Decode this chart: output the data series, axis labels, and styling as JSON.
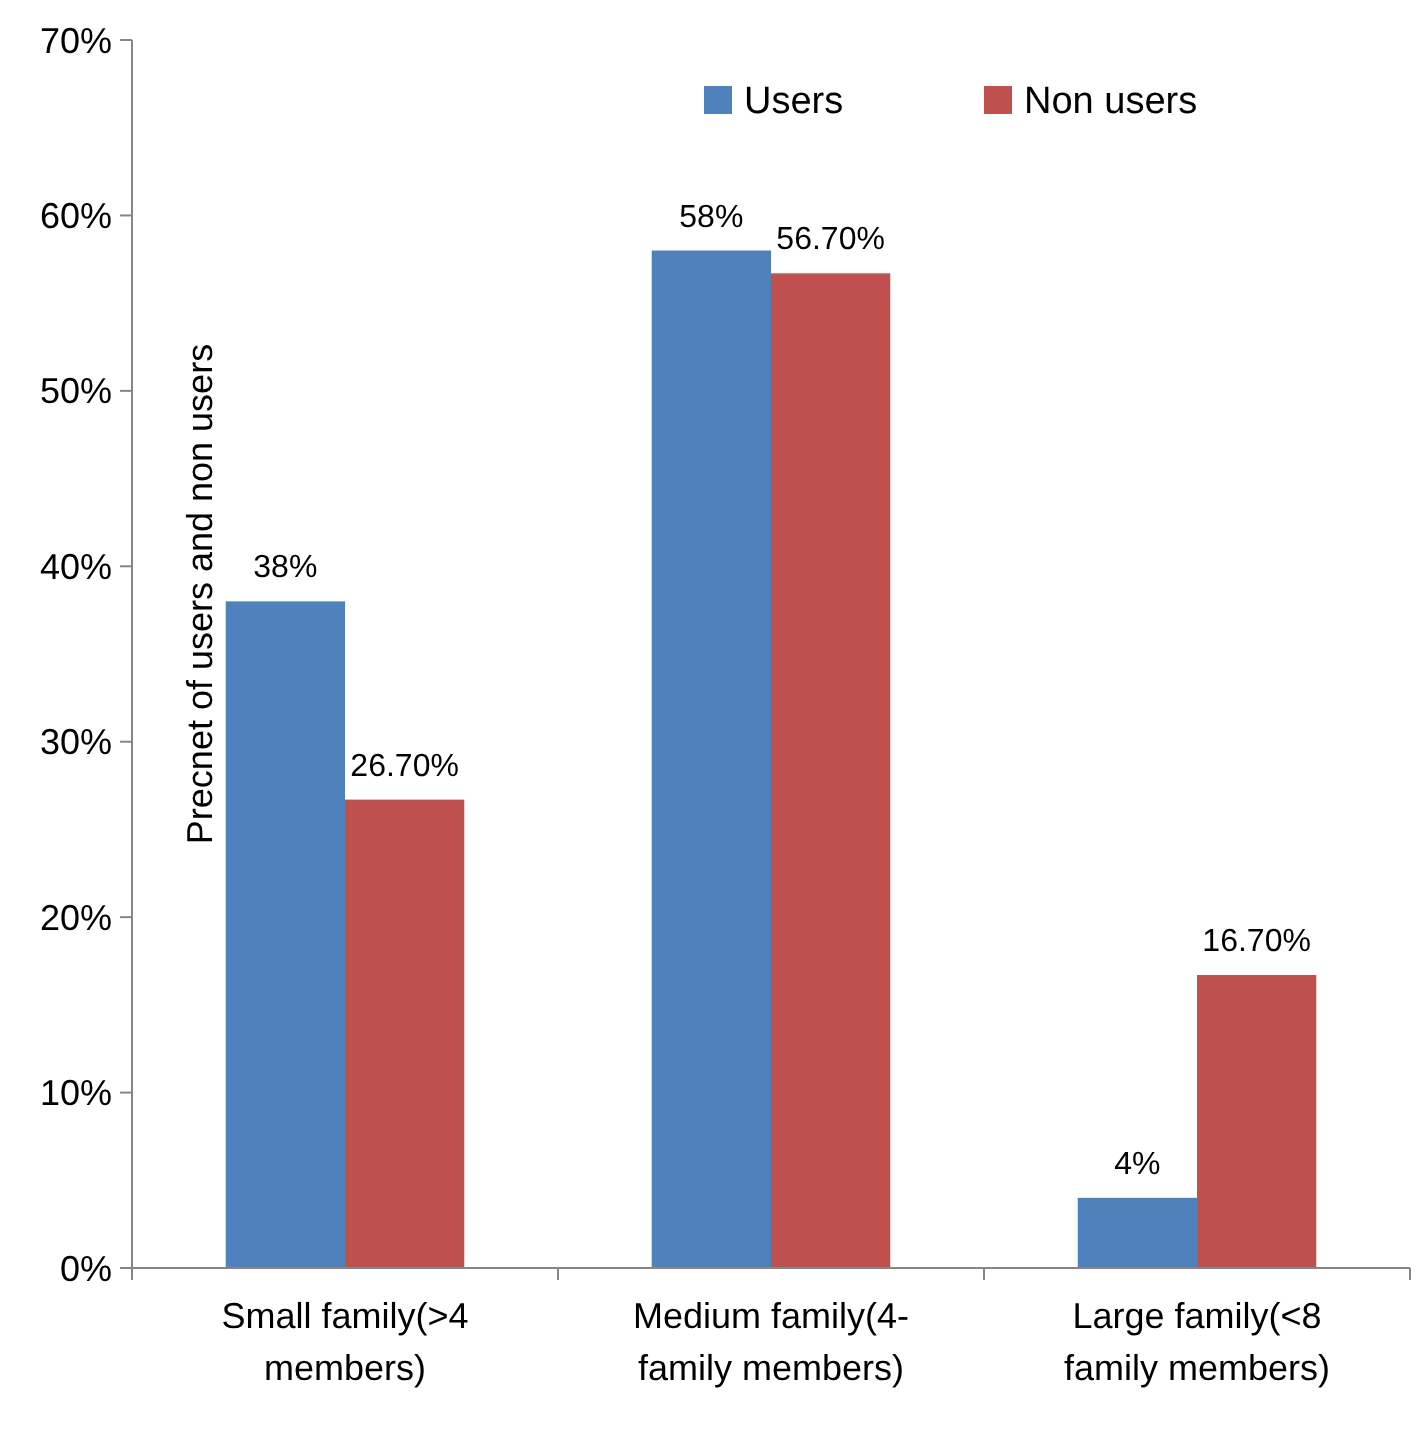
{
  "chart_data": {
    "type": "bar",
    "ylabel": "Precnet of users and non users",
    "categories": [
      "Small family(>4\nmembers)",
      "Medium family(4-\nfamily members)",
      "Large family(<8\nfamily members)"
    ],
    "series": [
      {
        "name": "Users",
        "color": "#4f81bd",
        "values": [
          38,
          58,
          4
        ],
        "value_labels": [
          "38%",
          "58%",
          "4%"
        ]
      },
      {
        "name": "Non users",
        "color": "#c0504d",
        "values": [
          26.7,
          56.7,
          16.7
        ],
        "value_labels": [
          "26.70%",
          "56.70%",
          "16.70%"
        ]
      }
    ],
    "ylim": [
      0,
      70
    ],
    "yticks": [
      {
        "value": 0,
        "label": "0%"
      },
      {
        "value": 10,
        "label": "10%"
      },
      {
        "value": 20,
        "label": "20%"
      },
      {
        "value": 30,
        "label": "30%"
      },
      {
        "value": 40,
        "label": "40%"
      },
      {
        "value": 50,
        "label": "50%"
      },
      {
        "value": 60,
        "label": "60%"
      },
      {
        "value": 70,
        "label": "70%"
      }
    ],
    "grid": false,
    "legend": "top"
  }
}
